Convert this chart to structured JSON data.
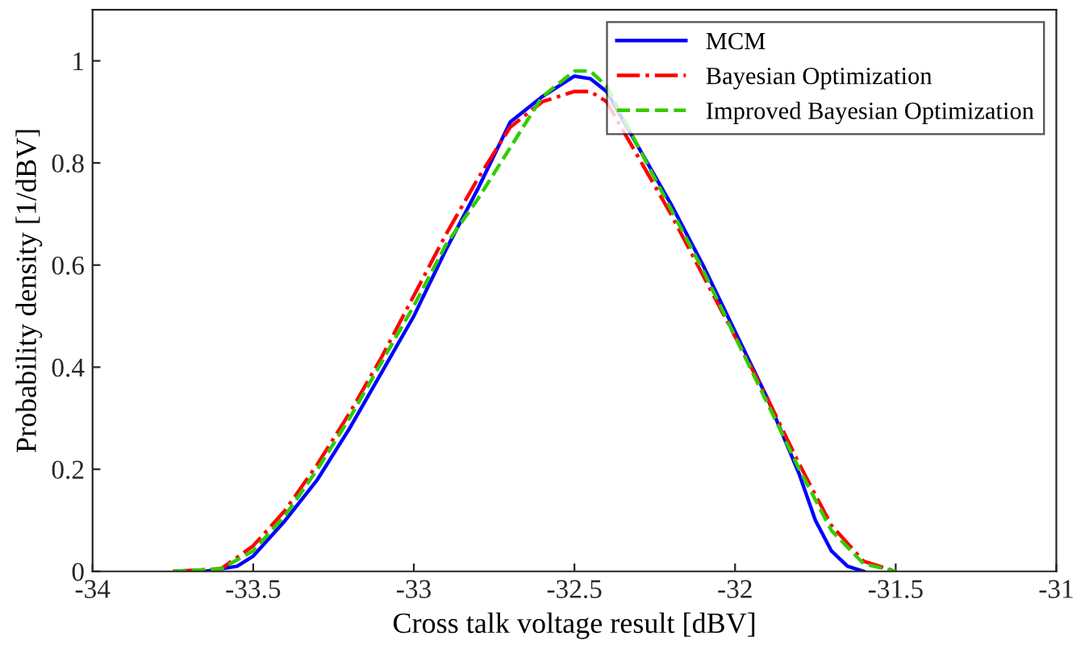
{
  "chart_data": {
    "type": "line",
    "xlabel": "Cross talk voltage result [dBV]",
    "ylabel": "Probability density [1/dBV]",
    "xlim": [
      -34,
      -31
    ],
    "xticks": [
      -34,
      -33.5,
      -33,
      -32.5,
      -32,
      -31.5,
      -31
    ],
    "ylim": [
      0,
      1.1
    ],
    "yticks": [
      0,
      0.2,
      0.4,
      0.6,
      0.8,
      1
    ],
    "grid": false,
    "legend": "top right",
    "marker": "none",
    "series": [
      {
        "name": "MCM",
        "color": "#0000ff",
        "line_style": "solid",
        "x": [
          -33.65,
          -33.55,
          -33.5,
          -33.4,
          -33.3,
          -33.2,
          -33.1,
          -33.0,
          -32.9,
          -32.8,
          -32.7,
          -32.6,
          -32.5,
          -32.45,
          -32.4,
          -32.3,
          -32.2,
          -32.1,
          -32.0,
          -31.9,
          -31.8,
          -31.75,
          -31.7,
          -31.65,
          -31.6
        ],
        "values": [
          0,
          0.01,
          0.03,
          0.1,
          0.18,
          0.28,
          0.39,
          0.5,
          0.63,
          0.75,
          0.88,
          0.93,
          0.97,
          0.965,
          0.94,
          0.83,
          0.72,
          0.6,
          0.47,
          0.34,
          0.19,
          0.1,
          0.04,
          0.01,
          0
        ]
      },
      {
        "name": "Bayesian Optimization",
        "color": "#ff0000",
        "line_style": "dashdot",
        "x": [
          -33.75,
          -33.6,
          -33.5,
          -33.4,
          -33.3,
          -33.2,
          -33.1,
          -33.0,
          -32.9,
          -32.8,
          -32.7,
          -32.6,
          -32.5,
          -32.45,
          -32.4,
          -32.3,
          -32.2,
          -32.1,
          -32.0,
          -31.9,
          -31.8,
          -31.7,
          -31.6,
          -31.5
        ],
        "values": [
          0,
          0.005,
          0.05,
          0.12,
          0.21,
          0.31,
          0.42,
          0.54,
          0.66,
          0.77,
          0.87,
          0.92,
          0.94,
          0.94,
          0.92,
          0.81,
          0.7,
          0.58,
          0.46,
          0.34,
          0.21,
          0.09,
          0.02,
          0
        ]
      },
      {
        "name": "Improved Bayesian Optimization",
        "color": "#33cc00",
        "line_style": "dashed",
        "x": [
          -33.75,
          -33.6,
          -33.5,
          -33.4,
          -33.3,
          -33.2,
          -33.1,
          -33.0,
          -32.9,
          -32.8,
          -32.7,
          -32.6,
          -32.5,
          -32.45,
          -32.4,
          -32.3,
          -32.2,
          -32.1,
          -32.0,
          -31.9,
          -31.8,
          -31.7,
          -31.6,
          -31.5
        ],
        "values": [
          0,
          0.005,
          0.04,
          0.11,
          0.2,
          0.3,
          0.41,
          0.52,
          0.64,
          0.73,
          0.83,
          0.93,
          0.98,
          0.98,
          0.95,
          0.83,
          0.71,
          0.59,
          0.46,
          0.33,
          0.2,
          0.08,
          0.015,
          0
        ]
      }
    ]
  }
}
